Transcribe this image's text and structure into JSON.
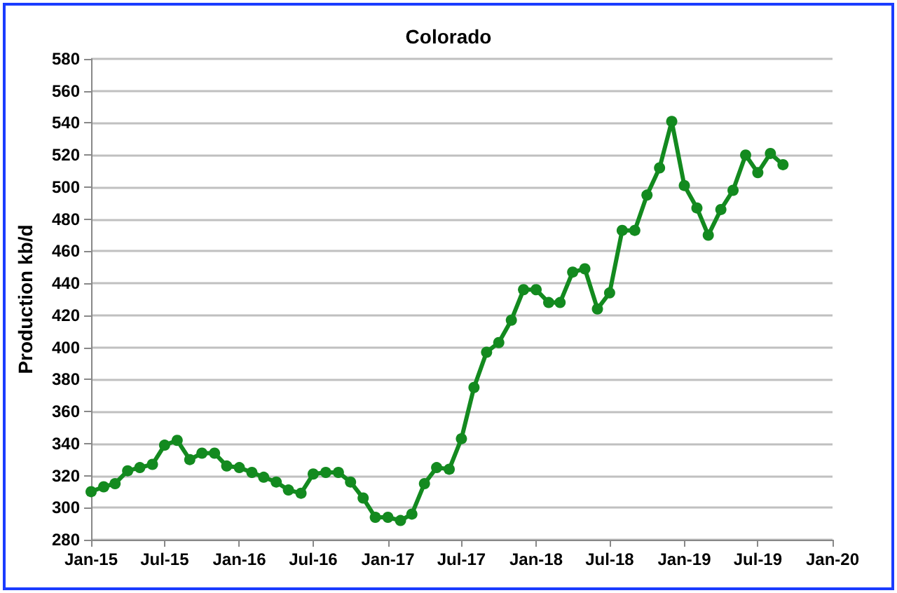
{
  "chart_data": {
    "type": "line",
    "title": "Colorado",
    "ylabel": "Production kb/d",
    "x": [
      "2015-01",
      "2015-02",
      "2015-03",
      "2015-04",
      "2015-05",
      "2015-06",
      "2015-07",
      "2015-08",
      "2015-09",
      "2015-10",
      "2015-11",
      "2015-12",
      "2016-01",
      "2016-02",
      "2016-03",
      "2016-04",
      "2016-05",
      "2016-06",
      "2016-07",
      "2016-08",
      "2016-09",
      "2016-10",
      "2016-11",
      "2016-12",
      "2017-01",
      "2017-02",
      "2017-03",
      "2017-04",
      "2017-05",
      "2017-06",
      "2017-07",
      "2017-08",
      "2017-09",
      "2017-10",
      "2017-11",
      "2017-12",
      "2018-01",
      "2018-02",
      "2018-03",
      "2018-04",
      "2018-05",
      "2018-06",
      "2018-07",
      "2018-08",
      "2018-09",
      "2018-10",
      "2018-11",
      "2018-12",
      "2019-01",
      "2019-02",
      "2019-03",
      "2019-04",
      "2019-05",
      "2019-06",
      "2019-07",
      "2019-08",
      "2019-09"
    ],
    "series": [
      {
        "color": "#138a1f",
        "values": [
          310,
          313,
          315,
          323,
          325,
          327,
          339,
          342,
          330,
          334,
          334,
          326,
          325,
          322,
          319,
          316,
          311,
          309,
          321,
          322,
          322,
          316,
          306,
          294,
          294,
          292,
          296,
          315,
          325,
          324,
          343,
          375,
          397,
          403,
          417,
          436,
          436,
          428,
          428,
          447,
          449,
          424,
          434,
          473,
          473,
          495,
          512,
          541,
          501,
          487,
          470,
          486,
          498,
          520,
          509,
          521,
          514
        ]
      }
    ],
    "xlim": [
      "2015-01",
      "2020-01"
    ],
    "xticks": [
      {
        "value": "2015-01",
        "label": "Jan-15"
      },
      {
        "value": "2015-07",
        "label": "Jul-15"
      },
      {
        "value": "2016-01",
        "label": "Jan-16"
      },
      {
        "value": "2016-07",
        "label": "Jul-16"
      },
      {
        "value": "2017-01",
        "label": "Jan-17"
      },
      {
        "value": "2017-07",
        "label": "Jul-17"
      },
      {
        "value": "2018-01",
        "label": "Jan-18"
      },
      {
        "value": "2018-07",
        "label": "Jul-18"
      },
      {
        "value": "2019-01",
        "label": "Jan-19"
      },
      {
        "value": "2019-07",
        "label": "Jul-19"
      },
      {
        "value": "2020-01",
        "label": "Jan-20"
      }
    ],
    "ylim": [
      280,
      580
    ],
    "yticks": [
      280,
      300,
      320,
      340,
      360,
      380,
      400,
      420,
      440,
      460,
      480,
      500,
      520,
      540,
      560,
      580
    ],
    "grid": "y",
    "marker": "circle",
    "line_style": "solid"
  }
}
